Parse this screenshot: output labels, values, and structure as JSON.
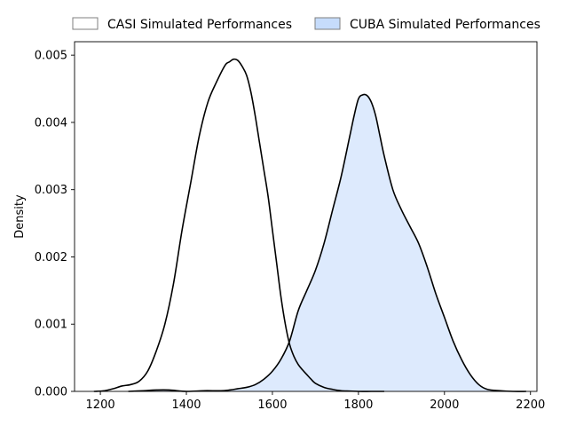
{
  "chart_data": {
    "type": "area",
    "title": "",
    "xlabel": "",
    "ylabel": "Density",
    "xlim": [
      1140,
      2215
    ],
    "ylim": [
      0,
      0.0052
    ],
    "xticks": [
      1200,
      1400,
      1600,
      1800,
      2000,
      2200
    ],
    "yticks": [
      0.0,
      0.001,
      0.002,
      0.003,
      0.004,
      0.005
    ],
    "ytick_labels": [
      "0.000",
      "0.001",
      "0.002",
      "0.003",
      "0.004",
      "0.005"
    ],
    "grid": false,
    "legend_position": "top, outside plot, horizontal",
    "series": [
      {
        "name": "CASI Simulated Performances",
        "fill": "#ffffff",
        "fill_opacity": 0,
        "line_color": "#000000",
        "x": [
          1185,
          1210,
          1230,
          1250,
          1270,
          1290,
          1310,
          1330,
          1350,
          1370,
          1390,
          1410,
          1430,
          1450,
          1470,
          1490,
          1500,
          1510,
          1520,
          1530,
          1540,
          1550,
          1560,
          1570,
          1580,
          1590,
          1600,
          1610,
          1620,
          1630,
          1640,
          1650,
          1660,
          1670,
          1680,
          1690,
          1700,
          1720,
          1740,
          1760,
          1780,
          1800,
          1830,
          1860
        ],
        "y": [
          0.0,
          1e-05,
          4e-05,
          8e-05,
          0.0001,
          0.00015,
          0.0003,
          0.0006,
          0.001,
          0.0016,
          0.0024,
          0.0031,
          0.0038,
          0.0043,
          0.0046,
          0.00485,
          0.0049,
          0.00494,
          0.00492,
          0.00483,
          0.0047,
          0.00445,
          0.0041,
          0.0037,
          0.0033,
          0.0029,
          0.0024,
          0.0019,
          0.0014,
          0.001,
          0.0007,
          0.00052,
          0.0004,
          0.00032,
          0.00025,
          0.00018,
          0.00012,
          6e-05,
          3e-05,
          1e-05,
          5e-06,
          0.0,
          0.0,
          0.0
        ]
      },
      {
        "name": "CUBA Simulated Performances",
        "fill": "#c6dcfb",
        "fill_opacity": 0.6,
        "line_color": "#000000",
        "x": [
          1265,
          1300,
          1330,
          1360,
          1400,
          1440,
          1480,
          1500,
          1520,
          1540,
          1560,
          1580,
          1600,
          1620,
          1640,
          1660,
          1680,
          1700,
          1720,
          1740,
          1760,
          1780,
          1790,
          1800,
          1810,
          1820,
          1830,
          1840,
          1850,
          1860,
          1880,
          1900,
          1920,
          1940,
          1960,
          1980,
          2000,
          2020,
          2040,
          2060,
          2080,
          2100,
          2130,
          2160,
          2190
        ],
        "y": [
          0.0,
          1e-05,
          2e-05,
          2e-05,
          0.0,
          1e-05,
          1e-05,
          2e-05,
          4e-05,
          6e-05,
          0.0001,
          0.00018,
          0.0003,
          0.00048,
          0.00075,
          0.0012,
          0.0015,
          0.0018,
          0.0022,
          0.0027,
          0.0032,
          0.0038,
          0.0041,
          0.00435,
          0.00441,
          0.0044,
          0.0043,
          0.0041,
          0.0038,
          0.0035,
          0.003,
          0.0027,
          0.00245,
          0.0022,
          0.00185,
          0.00145,
          0.0011,
          0.00075,
          0.00047,
          0.00025,
          0.0001,
          3e-05,
          1e-05,
          0.0,
          0.0
        ]
      }
    ]
  }
}
